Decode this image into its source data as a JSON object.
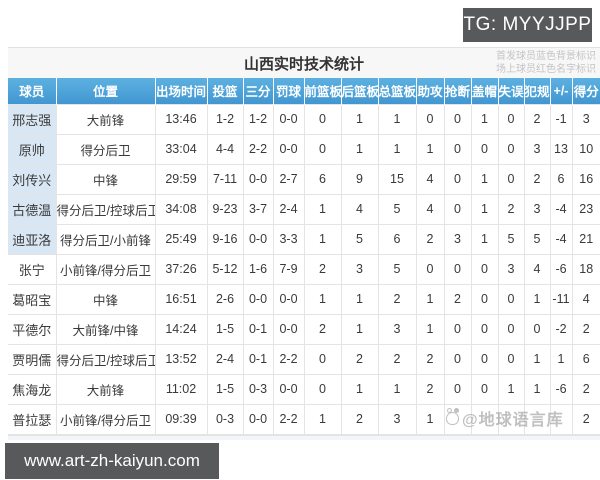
{
  "badges": {
    "tg": "TG: MYYJJPP",
    "url": "www.art-zh-kaiyun.com"
  },
  "table": {
    "title": "山西实时技术统计",
    "legend": [
      "首发球员蓝色背景标识",
      "场上球员红色名字标识"
    ],
    "columns": [
      "球员",
      "位置",
      "出场时间",
      "投篮",
      "三分",
      "罚球",
      "前篮板",
      "后篮板",
      "总篮板",
      "助攻",
      "抢断",
      "盖帽",
      "失误",
      "犯规",
      "+/-",
      "得分"
    ],
    "rows": [
      {
        "name": "邢志强",
        "starter": true,
        "position": "大前锋",
        "cells": [
          "13:46",
          "1-2",
          "1-2",
          "0-0",
          "0",
          "1",
          "1",
          "0",
          "0",
          "1",
          "0",
          "2",
          "-1",
          "3"
        ]
      },
      {
        "name": "原帅",
        "starter": true,
        "position": "得分后卫",
        "cells": [
          "33:04",
          "4-4",
          "2-2",
          "0-0",
          "0",
          "1",
          "1",
          "1",
          "0",
          "0",
          "0",
          "3",
          "13",
          "10"
        ]
      },
      {
        "name": "刘传兴",
        "starter": true,
        "position": "中锋",
        "cells": [
          "29:59",
          "7-11",
          "0-0",
          "2-7",
          "6",
          "9",
          "15",
          "4",
          "0",
          "1",
          "0",
          "2",
          "6",
          "16"
        ]
      },
      {
        "name": "古德温",
        "starter": true,
        "position": "得分后卫/控球后卫",
        "cells": [
          "34:08",
          "9-23",
          "3-7",
          "2-4",
          "1",
          "4",
          "5",
          "4",
          "0",
          "1",
          "2",
          "3",
          "-4",
          "23"
        ]
      },
      {
        "name": "迪亚洛",
        "starter": true,
        "position": "得分后卫/小前锋",
        "cells": [
          "25:49",
          "9-16",
          "0-0",
          "3-3",
          "1",
          "5",
          "6",
          "2",
          "3",
          "1",
          "5",
          "5",
          "-4",
          "21"
        ]
      },
      {
        "name": "张宁",
        "starter": false,
        "position": "小前锋/得分后卫",
        "cells": [
          "37:26",
          "5-12",
          "1-6",
          "7-9",
          "2",
          "3",
          "5",
          "0",
          "0",
          "0",
          "3",
          "4",
          "-6",
          "18"
        ]
      },
      {
        "name": "葛昭宝",
        "starter": false,
        "position": "中锋",
        "cells": [
          "16:51",
          "2-6",
          "0-0",
          "0-0",
          "1",
          "1",
          "2",
          "1",
          "2",
          "0",
          "0",
          "1",
          "-11",
          "4"
        ]
      },
      {
        "name": "平德尔",
        "starter": false,
        "position": "大前锋/中锋",
        "cells": [
          "14:24",
          "1-5",
          "0-1",
          "0-0",
          "2",
          "1",
          "3",
          "1",
          "0",
          "0",
          "0",
          "0",
          "-2",
          "2"
        ]
      },
      {
        "name": "贾明儒",
        "starter": false,
        "position": "得分后卫/控球后卫",
        "cells": [
          "13:52",
          "2-4",
          "0-1",
          "2-2",
          "0",
          "2",
          "2",
          "2",
          "0",
          "0",
          "0",
          "1",
          "1",
          "6"
        ]
      },
      {
        "name": "焦海龙",
        "starter": false,
        "position": "大前锋",
        "cells": [
          "11:02",
          "1-5",
          "0-3",
          "0-0",
          "0",
          "1",
          "1",
          "2",
          "0",
          "0",
          "1",
          "1",
          "-6",
          "2"
        ]
      },
      {
        "name": "普拉瑟",
        "starter": false,
        "position": "小前锋/得分后卫",
        "cells": [
          "09:39",
          "0-3",
          "0-0",
          "2-2",
          "1",
          "2",
          "3",
          "1",
          "",
          "",
          "",
          "",
          "",
          "2"
        ]
      }
    ]
  },
  "watermark": {
    "text": "@地球语言库"
  },
  "colors": {
    "header_blue": "#4aa2d8",
    "starter_row_bg": "#d9e7f4",
    "badge_bg": "#58595b"
  }
}
